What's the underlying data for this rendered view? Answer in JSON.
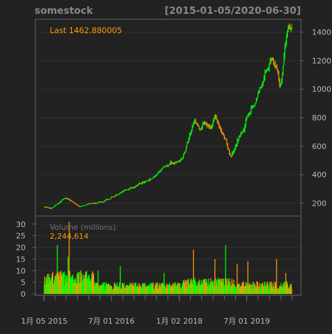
{
  "chart_data": {
    "type": "candlestick",
    "title": "somestock",
    "date_range": "[2015-01-05/2020-06-30]",
    "last_label": "Last 1462.880005",
    "price": {
      "ylim": [
        110,
        1490
      ],
      "ticks": [
        200,
        400,
        600,
        800,
        1000,
        1200,
        1400
      ],
      "anchors": [
        [
          "2015-01-05",
          175
        ],
        [
          "2015-03-01",
          165
        ],
        [
          "2015-05-01",
          200
        ],
        [
          "2015-06-15",
          240
        ],
        [
          "2015-07-20",
          230
        ],
        [
          "2015-09-01",
          205
        ],
        [
          "2015-10-20",
          180
        ],
        [
          "2015-12-20",
          195
        ],
        [
          "2016-03-01",
          205
        ],
        [
          "2016-05-01",
          215
        ],
        [
          "2016-07-01",
          240
        ],
        [
          "2016-09-01",
          270
        ],
        [
          "2016-11-01",
          300
        ],
        [
          "2017-01-01",
          310
        ],
        [
          "2017-03-01",
          340
        ],
        [
          "2017-05-01",
          360
        ],
        [
          "2017-07-01",
          395
        ],
        [
          "2017-09-01",
          445
        ],
        [
          "2017-11-01",
          480
        ],
        [
          "2018-01-01",
          480
        ],
        [
          "2018-02-15",
          560
        ],
        [
          "2018-04-01",
          700
        ],
        [
          "2018-05-01",
          780
        ],
        [
          "2018-06-15",
          720
        ],
        [
          "2018-08-01",
          770
        ],
        [
          "2018-09-15",
          720
        ],
        [
          "2018-10-15",
          800
        ],
        [
          "2018-12-01",
          720
        ],
        [
          "2019-01-15",
          640
        ],
        [
          "2019-02-20",
          520
        ],
        [
          "2019-04-15",
          640
        ],
        [
          "2019-06-01",
          720
        ],
        [
          "2019-07-15",
          820
        ],
        [
          "2019-09-01",
          900
        ],
        [
          "2019-10-15",
          1000
        ],
        [
          "2019-12-01",
          1150
        ],
        [
          "2020-01-15",
          1230
        ],
        [
          "2020-02-15",
          1170
        ],
        [
          "2020-03-10",
          1080
        ],
        [
          "2020-03-25",
          990
        ],
        [
          "2020-04-10",
          1060
        ],
        [
          "2020-05-01",
          1280
        ],
        [
          "2020-06-01",
          1400
        ],
        [
          "2020-06-30",
          1463
        ]
      ]
    },
    "volume": {
      "label": "Volume (millions):",
      "last_value": "2,244,614",
      "ylim": [
        0,
        32
      ],
      "ticks": [
        0,
        5,
        10,
        15,
        20,
        25,
        30
      ],
      "spikes": [
        [
          "2015-04-20",
          21
        ],
        [
          "2015-07-15",
          16
        ],
        [
          "2015-07-25",
          31
        ],
        [
          "2015-10-25",
          10
        ],
        [
          "2016-03-15",
          10
        ],
        [
          "2016-09-10",
          12
        ],
        [
          "2017-09-01",
          9
        ],
        [
          "2018-04-25",
          19
        ],
        [
          "2018-10-15",
          15
        ],
        [
          "2019-01-10",
          21
        ],
        [
          "2019-04-15",
          13
        ],
        [
          "2019-07-10",
          14
        ],
        [
          "2020-02-25",
          15
        ],
        [
          "2020-05-10",
          9
        ]
      ]
    },
    "x_ticks": [
      "1月 05 2015",
      "7月 01 2016",
      "1月 02 2018",
      "7月 01 2019"
    ],
    "x_tick_dates": [
      "2015-01-05",
      "2016-07-01",
      "2018-01-02",
      "2019-07-01"
    ],
    "colors": {
      "background": "#222222",
      "up": "#00ff00",
      "down": "#ff9900",
      "axis": "#666666",
      "grid": "#303030",
      "text": "#bbbbbb",
      "title": "#888888",
      "last_label": "#ff9900"
    }
  }
}
